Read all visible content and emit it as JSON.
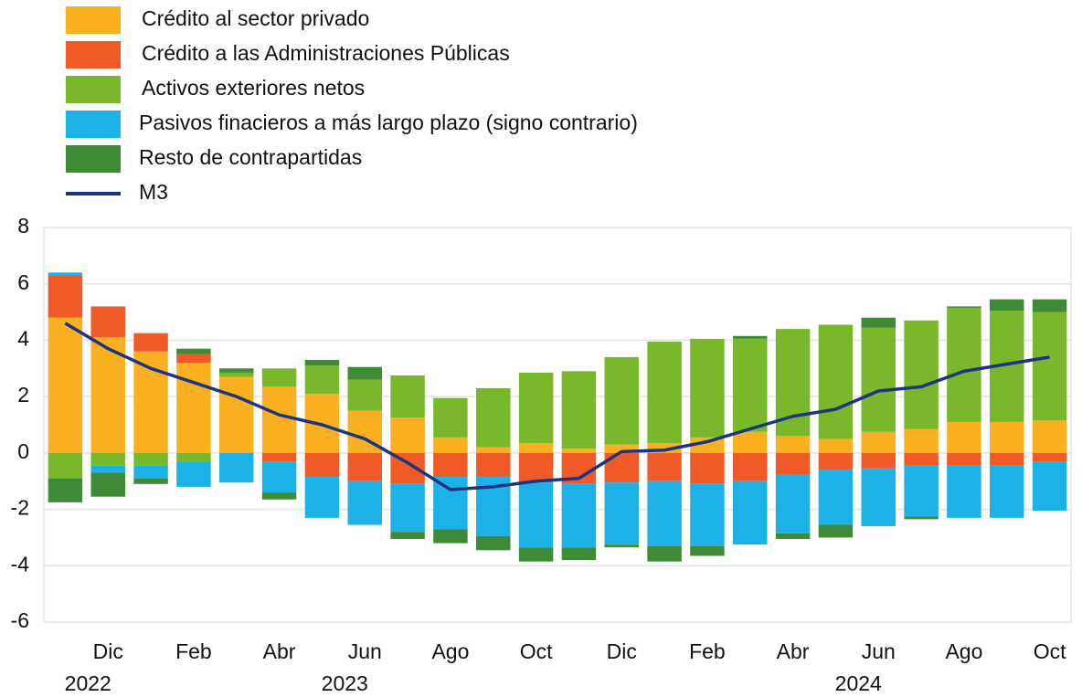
{
  "chart_data": {
    "type": "bar",
    "stacked": true,
    "categories": [
      null,
      "Dic",
      null,
      "Feb",
      null,
      "Abr",
      null,
      "Jun",
      null,
      "Ago",
      null,
      "Oct",
      null,
      "Dic",
      null,
      "Feb",
      null,
      "Abr",
      null,
      "Jun",
      null,
      "Ago",
      null,
      "Oct"
    ],
    "year_labels": [
      {
        "label": "2022",
        "category": 1
      },
      {
        "label": "2023",
        "category": 7
      },
      {
        "label": "2024",
        "category": 19
      }
    ],
    "ylim": [
      -6,
      8
    ],
    "yticks": [
      -6,
      -4,
      -2,
      0,
      2,
      4,
      6,
      8
    ],
    "grid": true,
    "series": [
      {
        "name": "Crédito al sector privado",
        "color": "#f9b121",
        "values": [
          4.8,
          4.1,
          3.6,
          3.2,
          2.7,
          2.35,
          2.1,
          1.5,
          1.25,
          0.55,
          0.2,
          0.35,
          0.15,
          0.3,
          0.35,
          0.55,
          0.75,
          0.6,
          0.5,
          0.75,
          0.85,
          1.1,
          1.1,
          1.15
        ]
      },
      {
        "name": "Crédito a las Administraciones Públicas",
        "color": "#f05a28",
        "values": [
          1.5,
          1.1,
          0.65,
          0.3,
          0,
          -0.3,
          -0.85,
          -1.0,
          -1.1,
          -0.85,
          -0.85,
          -1.05,
          -1.1,
          -1.05,
          -1.0,
          -1.1,
          -1.0,
          -0.75,
          -0.6,
          -0.55,
          -0.45,
          -0.45,
          -0.45,
          -0.3
        ]
      },
      {
        "name": "Activos exteriores netos",
        "color": "#78b82a",
        "values": [
          -0.9,
          -0.45,
          -0.45,
          -0.3,
          0.15,
          0.65,
          1.0,
          1.1,
          1.5,
          1.4,
          2.1,
          2.5,
          2.75,
          3.1,
          3.6,
          3.5,
          3.3,
          3.8,
          4.05,
          3.7,
          3.85,
          4.05,
          3.95,
          3.85
        ]
      },
      {
        "name": "Pasivos finacieros a más largo plazo (signo contrario)",
        "color": "#1cb1e7",
        "values": [
          0.1,
          -0.25,
          -0.45,
          -0.9,
          -1.05,
          -1.1,
          -1.45,
          -1.55,
          -1.7,
          -1.85,
          -2.1,
          -2.3,
          -2.25,
          -2.2,
          -2.3,
          -2.2,
          -2.25,
          -2.1,
          -1.95,
          -2.05,
          -1.8,
          -1.85,
          -1.85,
          -1.75
        ]
      },
      {
        "name": "Resto de contrapartidas",
        "color": "#3f8a36",
        "values": [
          -0.85,
          -0.85,
          -0.2,
          0.2,
          0.15,
          -0.25,
          0.2,
          0.45,
          -0.25,
          -0.5,
          -0.5,
          -0.5,
          -0.45,
          -0.1,
          -0.55,
          -0.35,
          0.1,
          -0.2,
          -0.45,
          0.35,
          -0.1,
          0.05,
          0.4,
          0.45
        ]
      },
      {
        "name": "M3",
        "color": "#1c3583",
        "type": "line",
        "values": [
          4.6,
          3.7,
          3.0,
          2.5,
          2.0,
          1.35,
          1.0,
          0.5,
          -0.35,
          -1.3,
          -1.2,
          -1.0,
          -0.9,
          0.05,
          0.1,
          0.4,
          0.85,
          1.3,
          1.55,
          2.2,
          2.35,
          2.9,
          3.15,
          3.4
        ]
      }
    ]
  }
}
